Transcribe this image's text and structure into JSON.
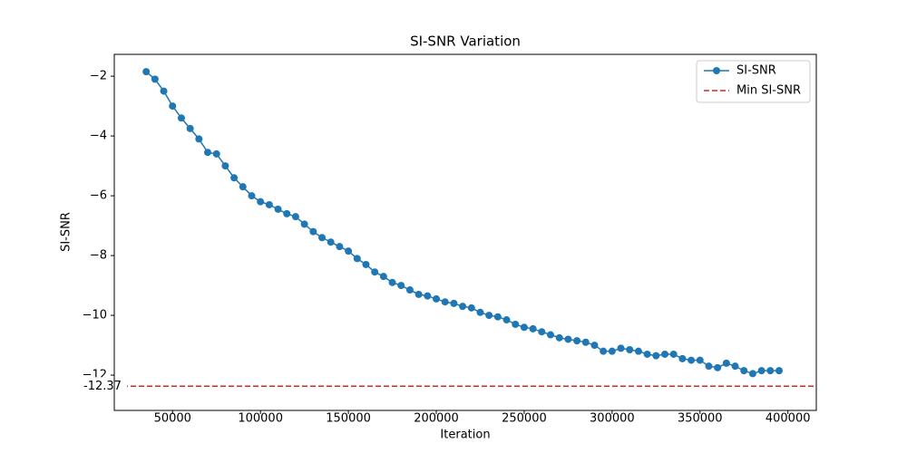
{
  "chart_data": {
    "type": "line",
    "title": "SI-SNR Variation",
    "xlabel": "Iteration",
    "ylabel": "SI-SNR",
    "x": [
      35000,
      40000,
      45000,
      50000,
      55000,
      60000,
      65000,
      70000,
      75000,
      80000,
      85000,
      90000,
      95000,
      100000,
      105000,
      110000,
      115000,
      120000,
      125000,
      130000,
      135000,
      140000,
      145000,
      150000,
      155000,
      160000,
      165000,
      170000,
      175000,
      180000,
      185000,
      190000,
      195000,
      200000,
      205000,
      210000,
      215000,
      220000,
      225000,
      230000,
      235000,
      240000,
      245000,
      250000,
      255000,
      260000,
      265000,
      270000,
      275000,
      280000,
      285000,
      290000,
      295000,
      300000,
      305000,
      310000,
      315000,
      320000,
      325000,
      330000,
      335000,
      340000,
      345000,
      350000,
      355000,
      360000,
      365000,
      370000,
      375000,
      380000,
      385000,
      390000,
      395000
    ],
    "series": [
      {
        "name": "SI-SNR",
        "color": "#1f77b4",
        "values": [
          -1.85,
          -2.1,
          -2.5,
          -3.0,
          -3.4,
          -3.75,
          -4.1,
          -4.55,
          -4.6,
          -5.0,
          -5.4,
          -5.7,
          -6.0,
          -6.2,
          -6.3,
          -6.45,
          -6.6,
          -6.7,
          -6.95,
          -7.2,
          -7.4,
          -7.55,
          -7.7,
          -7.85,
          -8.1,
          -8.3,
          -8.55,
          -8.7,
          -8.9,
          -9.0,
          -9.15,
          -9.3,
          -9.35,
          -9.45,
          -9.55,
          -9.6,
          -9.7,
          -9.75,
          -9.9,
          -10.0,
          -10.05,
          -10.15,
          -10.3,
          -10.4,
          -10.45,
          -10.55,
          -10.65,
          -10.75,
          -10.8,
          -10.85,
          -10.9,
          -11.0,
          -11.2,
          -11.2,
          -11.1,
          -11.15,
          -11.2,
          -11.3,
          -11.35,
          -11.3,
          -11.3,
          -11.45,
          -11.5,
          -11.5,
          -11.7,
          -11.75,
          -11.6,
          -11.7,
          -11.85,
          -11.95,
          -11.85,
          -11.85,
          -11.85
        ]
      }
    ],
    "hline": {
      "name": "Min SI-SNR",
      "value": -12.37,
      "label": "-12.37",
      "color": "#d62728"
    },
    "xlim": [
      16850,
      416150
    ],
    "ylim": [
      -13.18,
      -1.27
    ],
    "xticks": [
      50000,
      100000,
      150000,
      200000,
      250000,
      300000,
      350000,
      400000
    ],
    "yticks": [
      {
        "value": -12,
        "label": "−12"
      },
      {
        "value": -10,
        "label": "−10"
      },
      {
        "value": -8,
        "label": "−8"
      },
      {
        "value": -6,
        "label": "−6"
      },
      {
        "value": -4,
        "label": "−4"
      },
      {
        "value": -2,
        "label": "−2"
      }
    ],
    "legend": "upper right"
  }
}
